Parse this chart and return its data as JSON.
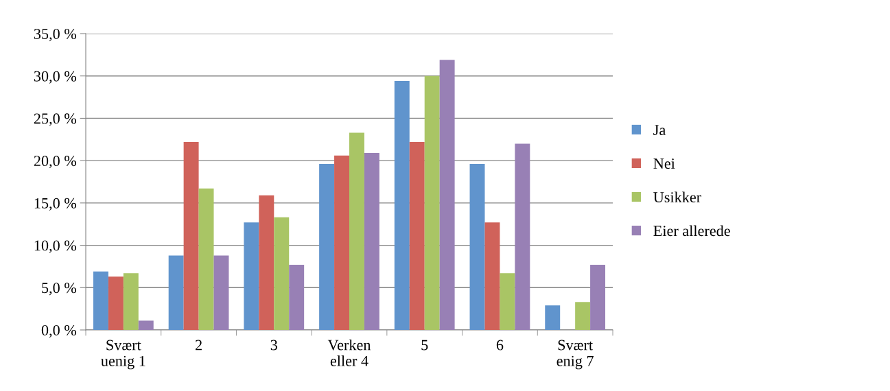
{
  "chart_data": {
    "type": "bar",
    "categories": [
      "Svært\nuenig 1",
      "2",
      "3",
      "Verken\neller 4",
      "5",
      "6",
      "Svært\nenig 7"
    ],
    "series": [
      {
        "name": "Ja",
        "color": "#6094cd",
        "values": [
          6.9,
          8.8,
          12.7,
          19.6,
          29.4,
          19.6,
          2.9
        ]
      },
      {
        "name": "Nei",
        "color": "#d0625a",
        "values": [
          6.3,
          22.2,
          15.9,
          20.6,
          22.2,
          12.7,
          0
        ]
      },
      {
        "name": "Usikker",
        "color": "#a9c565",
        "values": [
          6.7,
          16.7,
          13.3,
          23.3,
          30.0,
          6.7,
          3.3
        ]
      },
      {
        "name": "Eier allerede",
        "color": "#9880b5",
        "values": [
          1.1,
          8.8,
          7.7,
          20.9,
          31.9,
          22.0,
          7.7
        ]
      }
    ],
    "ylim": [
      0,
      35
    ],
    "yticks": [
      {
        "value": 0,
        "label": "0,0 %"
      },
      {
        "value": 5,
        "label": "5,0 %"
      },
      {
        "value": 10,
        "label": "10,0 %"
      },
      {
        "value": 15,
        "label": "15,0 %"
      },
      {
        "value": 20,
        "label": "20,0 %"
      },
      {
        "value": 25,
        "label": "25,0 %"
      },
      {
        "value": 30,
        "label": "30,0 %"
      },
      {
        "value": 35,
        "label": "35,0 %"
      }
    ],
    "grid": "y",
    "legend": "right"
  }
}
